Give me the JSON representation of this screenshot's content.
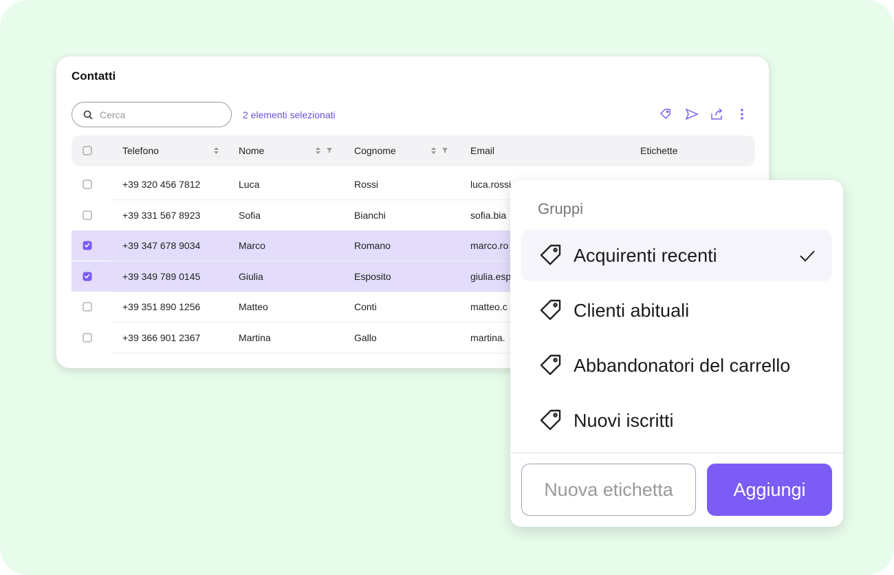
{
  "header": {
    "title": "Contatti",
    "search_placeholder": "Cerca",
    "selection_status": "2 elementi selezionati"
  },
  "table": {
    "columns": [
      "Telefono",
      "Nome",
      "Cognome",
      "Email",
      "Etichette"
    ],
    "rows": [
      {
        "cells": [
          "+39 320 456 7812",
          "Luca",
          "Rossi",
          "luca.rossi"
        ],
        "selected": false
      },
      {
        "cells": [
          "+39 331 567 8923",
          "Sofia",
          "Bianchi",
          "sofia.bia"
        ],
        "selected": false
      },
      {
        "cells": [
          "+39 347 678 9034",
          "Marco",
          "Romano",
          "marco.ro"
        ],
        "selected": true
      },
      {
        "cells": [
          "+39 349 789 0145",
          "Giulia",
          "Esposito",
          "giulia.esp"
        ],
        "selected": true
      },
      {
        "cells": [
          "+39 351 890 1256",
          "Matteo",
          "Conti",
          "matteo.c"
        ],
        "selected": false
      },
      {
        "cells": [
          "+39 366 901 2367",
          "Martina",
          "Gallo",
          "martina."
        ],
        "selected": false
      }
    ]
  },
  "popup": {
    "title": "Gruppi",
    "items": [
      {
        "label": "Acquirenti recenti",
        "checked": true
      },
      {
        "label": "Clienti abituali",
        "checked": false
      },
      {
        "label": "Abbandonatori del carrello",
        "checked": false
      },
      {
        "label": "Nuovi iscritti",
        "checked": false
      }
    ],
    "secondary_button": "Nuova etichetta",
    "primary_button": "Aggiungi"
  }
}
